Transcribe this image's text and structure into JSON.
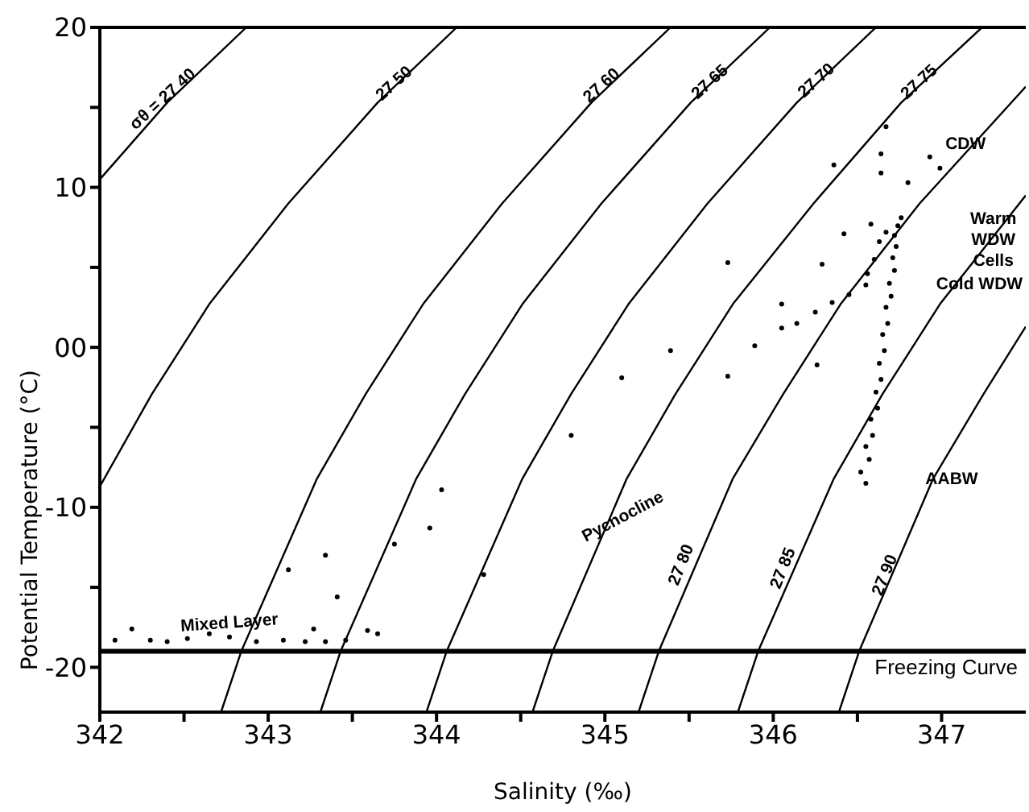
{
  "chart_data": {
    "type": "line",
    "xlabel": "Salinity (‰)",
    "ylabel": "Potential Temperature (°C)",
    "xlim": [
      342,
      347.5
    ],
    "ylim": [
      -22.8,
      20
    ],
    "xticks": [
      342,
      {
        "value": 342.5,
        "label": null
      },
      343,
      {
        "value": 343.5,
        "label": null
      },
      344,
      {
        "value": 344.5,
        "label": null
      },
      345,
      {
        "value": 345.5,
        "label": null
      },
      346,
      {
        "value": 346.5,
        "label": null
      },
      347
    ],
    "yticks": [
      -20,
      {
        "value": -15,
        "label": null
      },
      -10,
      {
        "value": -5,
        "label": null
      },
      {
        "value": 0,
        "label": "00"
      },
      {
        "value": 5,
        "label": null
      },
      10,
      {
        "value": 15,
        "label": null
      },
      20
    ],
    "grid": false,
    "legend": false,
    "series": [
      {
        "color": "#000000",
        "x": [
          342.87,
          342.4,
          342.0
        ],
        "values": [
          20,
          15.3,
          10.5
        ]
      },
      {
        "color": "#000000",
        "x": [
          344.12,
          343.65,
          343.12,
          342.65,
          342.31,
          342.0
        ],
        "values": [
          20,
          15.3,
          9,
          2.7,
          -2.9,
          -8.7
        ]
      },
      {
        "color": "#000000",
        "x": [
          345.39,
          344.92,
          344.39,
          343.92,
          343.58,
          343.29,
          342.84,
          342.72
        ],
        "values": [
          20,
          15.3,
          9,
          2.7,
          -2.9,
          -8.2,
          -19,
          -22.8
        ]
      },
      {
        "color": "#000000",
        "x": [
          345.98,
          345.51,
          344.98,
          344.51,
          344.17,
          343.88,
          343.43,
          343.31
        ],
        "values": [
          20,
          15.3,
          9,
          2.7,
          -2.9,
          -8.2,
          -19,
          -22.8
        ]
      },
      {
        "color": "#000000",
        "x": [
          346.61,
          346.14,
          345.61,
          345.14,
          344.8,
          344.51,
          344.06,
          343.94
        ],
        "values": [
          20,
          15.3,
          9,
          2.7,
          -2.9,
          -8.2,
          -19,
          -22.8
        ]
      },
      {
        "color": "#000000",
        "x": [
          347.24,
          346.76,
          346.24,
          345.76,
          345.42,
          345.13,
          344.69,
          344.57
        ],
        "values": [
          20,
          15.3,
          9,
          2.7,
          -2.9,
          -8.2,
          -19,
          -22.8
        ]
      },
      {
        "color": "#000000",
        "x": [
          347.5,
          346.87,
          346.4,
          346.06,
          345.76,
          345.32,
          345.2
        ],
        "values": [
          16.3,
          9,
          2.7,
          -2.9,
          -8.2,
          -19,
          -22.8
        ]
      },
      {
        "color": "#000000",
        "x": [
          347.5,
          346.99,
          346.65,
          346.36,
          345.91,
          345.79
        ],
        "values": [
          9.5,
          2.7,
          -2.9,
          -8.2,
          -19,
          -22.8
        ]
      },
      {
        "color": "#000000",
        "x": [
          347.5,
          347.25,
          346.95,
          346.51,
          346.39
        ],
        "values": [
          1.3,
          -2.9,
          -8.2,
          -19,
          -22.8
        ]
      },
      {
        "type": "scatter",
        "color": "#000000",
        "marker": "circle",
        "x": [
          346.55,
          346.52,
          346.57,
          346.55,
          346.59,
          346.58,
          346.62,
          346.61,
          346.64,
          346.63,
          346.66,
          346.65,
          346.68,
          346.67,
          346.7,
          346.69,
          346.72,
          346.71,
          346.73,
          346.72,
          346.74,
          346.67,
          346.63,
          346.6,
          346.56,
          346.55,
          346.45,
          346.35,
          346.25,
          346.14,
          346.05,
          346.42,
          346.58,
          346.29,
          346.76,
          346.67,
          346.64,
          346.64,
          346.8,
          346.99,
          346.93,
          346.36,
          345.89,
          345.73,
          346.05,
          345.73,
          345.39,
          345.1,
          346.26,
          344.8,
          344.03,
          343.96,
          343.75,
          343.34,
          343.12,
          343.41,
          344.28,
          342.09,
          342.19,
          342.3,
          342.4,
          342.52,
          342.65,
          342.77,
          342.93,
          343.09,
          343.22,
          343.34,
          343.46,
          343.27,
          343.65,
          343.59
        ],
        "values": [
          -8.5,
          -7.8,
          -7.0,
          -6.2,
          -5.5,
          -4.5,
          -3.8,
          -2.8,
          -2.0,
          -1.0,
          -0.2,
          0.8,
          1.5,
          2.5,
          3.2,
          4.0,
          4.8,
          5.6,
          6.3,
          7.0,
          7.6,
          7.2,
          6.6,
          5.5,
          4.6,
          3.9,
          3.3,
          2.8,
          2.2,
          1.5,
          1.2,
          7.1,
          7.7,
          5.2,
          8.1,
          13.8,
          12.1,
          10.9,
          10.3,
          11.2,
          11.9,
          11.4,
          0.1,
          5.3,
          2.7,
          -1.8,
          -0.2,
          -1.9,
          -1.1,
          -5.5,
          -8.9,
          -11.3,
          -12.3,
          -13.0,
          -13.9,
          -15.6,
          -14.2,
          -18.3,
          -17.6,
          -18.3,
          -18.4,
          -18.2,
          -17.9,
          -18.1,
          -18.4,
          -18.3,
          -18.4,
          -18.4,
          -18.3,
          -17.6,
          -17.9,
          -17.7
        ]
      }
    ],
    "ref_lines": [
      {
        "axis": "y",
        "value": -19,
        "label": "Freezing Curve",
        "color": "#000000"
      }
    ],
    "annotations": [
      "σθ = 27 40",
      "27 50",
      "27 60",
      "27 65",
      "27 70",
      "27 75",
      "27 80",
      "27 85",
      "27 90",
      "CDW",
      "Warm WDW Cells",
      "Cold WDW",
      "AABW",
      "Pycnocline",
      "Mixed Layer"
    ]
  }
}
